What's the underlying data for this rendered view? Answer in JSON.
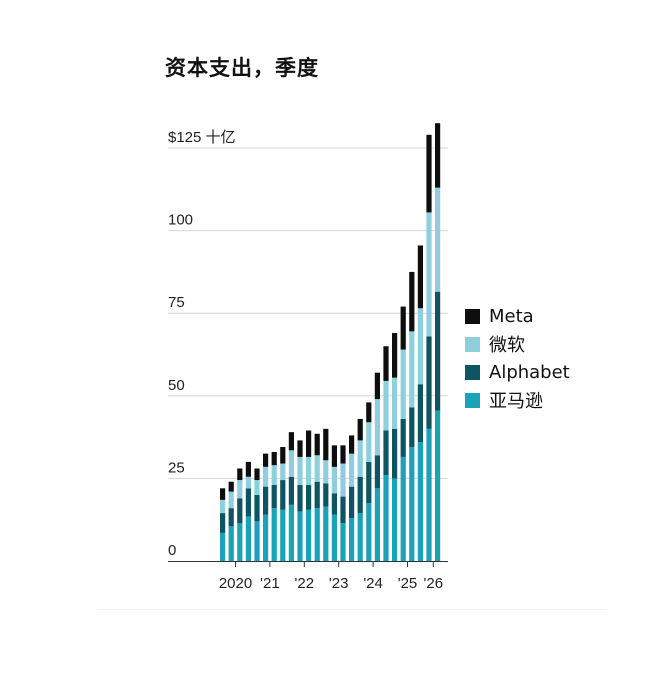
{
  "title": "资本支出，季度",
  "colors": {
    "meta": "#0e0e0e",
    "microsoft": "#8ecfde",
    "alphabet": "#0f5561",
    "amazon": "#1aa2b8",
    "grid": "#d6d6d6",
    "axis": "#333333"
  },
  "legend": [
    {
      "key": "meta",
      "label": "Meta"
    },
    {
      "key": "microsoft",
      "label": "微软"
    },
    {
      "key": "alphabet",
      "label": "Alphabet"
    },
    {
      "key": "amazon",
      "label": "亚马逊"
    }
  ],
  "chart_data": {
    "type": "bar",
    "stacked": true,
    "title": "资本支出，季度",
    "ylim": [
      0,
      125
    ],
    "yticks": [
      {
        "value": 125,
        "label": "$125 十亿"
      },
      {
        "value": 100,
        "label": "100"
      },
      {
        "value": 75,
        "label": "75"
      },
      {
        "value": 50,
        "label": "50"
      },
      {
        "value": 25,
        "label": "25"
      },
      {
        "value": 0,
        "label": "0"
      }
    ],
    "xtick_labels": [
      {
        "index": 1.5,
        "label": "2020"
      },
      {
        "index": 5.5,
        "label": "'21"
      },
      {
        "index": 9.5,
        "label": "'22"
      },
      {
        "index": 13.5,
        "label": "'23"
      },
      {
        "index": 17.5,
        "label": "'24"
      },
      {
        "index": 21.5,
        "label": "'25"
      },
      {
        "index": 24.5,
        "label": "'26"
      }
    ],
    "grid": true,
    "legend_position": "right",
    "categories": [
      "2020 Q1",
      "2020 Q2",
      "2020 Q3",
      "2020 Q4",
      "2021 Q1",
      "2021 Q2",
      "2021 Q3",
      "2021 Q4",
      "2022 Q1",
      "2022 Q2",
      "2022 Q3",
      "2022 Q4",
      "2023 Q1",
      "2023 Q2",
      "2023 Q3",
      "2023 Q4",
      "2024 Q1",
      "2024 Q2",
      "2024 Q3",
      "2024 Q4",
      "2025 Q1",
      "2025 Q2",
      "2025 Q3",
      "2025 Q4",
      "2026 Q1",
      "2026 Q2"
    ],
    "series": [
      {
        "name": "亚马逊",
        "key": "amazon",
        "values": [
          8.5,
          10.5,
          11.5,
          13.5,
          12,
          14,
          16,
          15.5,
          17,
          15,
          15.5,
          16,
          16.5,
          14,
          11.5,
          13,
          14.5,
          17.5,
          22,
          26,
          25,
          31.5,
          34.5,
          36,
          40,
          45.5
        ]
      },
      {
        "name": "Alphabet",
        "key": "alphabet",
        "values": [
          6,
          5.5,
          7.5,
          8.5,
          8,
          8.5,
          7,
          9,
          8.5,
          8,
          7.5,
          8,
          7,
          6.5,
          8,
          9.5,
          11,
          12.5,
          10,
          13.5,
          15,
          11.5,
          12,
          17.5,
          28,
          36
        ]
      },
      {
        "name": "微软",
        "key": "microsoft",
        "values": [
          4,
          5,
          5.5,
          3.5,
          4.5,
          6,
          6,
          5,
          8,
          8.5,
          8.5,
          8,
          7,
          8,
          10,
          10,
          11,
          12,
          17,
          15,
          15.5,
          21,
          23,
          23,
          37.5,
          31.5
        ]
      },
      {
        "name": "Meta",
        "key": "meta",
        "values": [
          3.5,
          3,
          3.5,
          4.5,
          3.5,
          4,
          4,
          5,
          5.5,
          5,
          8,
          6.5,
          9.5,
          6.5,
          5.5,
          5.5,
          6.5,
          6,
          8,
          10.5,
          13.5,
          13,
          18,
          19,
          23.5,
          19.5
        ]
      }
    ]
  }
}
